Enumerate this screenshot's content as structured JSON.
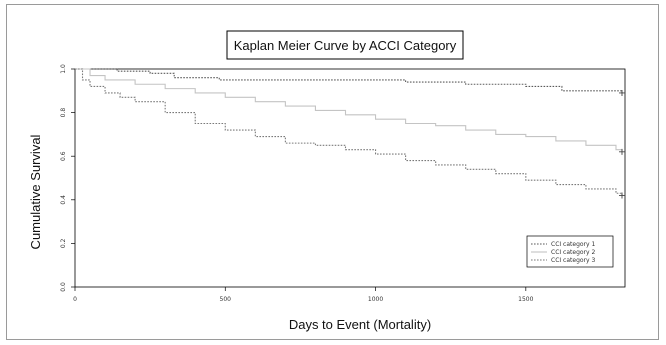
{
  "chart_data": {
    "type": "line",
    "title": "Kaplan Meier Curve by ACCI Category",
    "xlabel": "Days to Event (Mortality)",
    "ylabel": "Cumulative Survival",
    "xlim": [
      0,
      1830
    ],
    "ylim": [
      0,
      1.0
    ],
    "x_ticks": [
      {
        "value": 0,
        "label": "0"
      },
      {
        "value": 500,
        "label": "500"
      },
      {
        "value": 1000,
        "label": "1000"
      },
      {
        "value": 1500,
        "label": "1500"
      }
    ],
    "y_ticks": [
      {
        "value": 0.0,
        "label": "0.0"
      },
      {
        "value": 0.2,
        "label": "0.2"
      },
      {
        "value": 0.4,
        "label": "0.4"
      },
      {
        "value": 0.6,
        "label": "0.6"
      },
      {
        "value": 0.8,
        "label": "0.8"
      },
      {
        "value": 1.0,
        "label": "1.0"
      }
    ],
    "grid": false,
    "legend_position": "bottom-right",
    "series": [
      {
        "name": "CCI category 1",
        "color": "#5a5a5a",
        "dash": "dotted",
        "x": [
          0,
          60,
          140,
          250,
          330,
          480,
          600,
          900,
          1100,
          1200,
          1300,
          1500,
          1580,
          1620,
          1820
        ],
        "y": [
          1.0,
          1.0,
          0.99,
          0.98,
          0.96,
          0.95,
          0.95,
          0.95,
          0.94,
          0.94,
          0.93,
          0.92,
          0.92,
          0.9,
          0.89
        ]
      },
      {
        "name": "CCI category 2",
        "color": "#c4c4c4",
        "dash": "solid",
        "x": [
          0,
          50,
          100,
          200,
          300,
          400,
          500,
          600,
          700,
          800,
          900,
          1000,
          1100,
          1200,
          1300,
          1400,
          1500,
          1600,
          1700,
          1800,
          1820
        ],
        "y": [
          1.0,
          0.97,
          0.95,
          0.93,
          0.91,
          0.89,
          0.87,
          0.85,
          0.83,
          0.81,
          0.79,
          0.77,
          0.75,
          0.74,
          0.72,
          0.7,
          0.69,
          0.67,
          0.65,
          0.63,
          0.62
        ]
      },
      {
        "name": "CCI category 3",
        "color": "#7a7a7a",
        "dash": "dotted",
        "x": [
          0,
          25,
          50,
          100,
          150,
          200,
          300,
          400,
          500,
          600,
          700,
          800,
          900,
          1000,
          1100,
          1200,
          1300,
          1400,
          1500,
          1600,
          1700,
          1800,
          1820
        ],
        "y": [
          1.0,
          0.95,
          0.92,
          0.89,
          0.87,
          0.85,
          0.8,
          0.75,
          0.72,
          0.69,
          0.66,
          0.65,
          0.63,
          0.61,
          0.58,
          0.56,
          0.54,
          0.52,
          0.49,
          0.47,
          0.45,
          0.43,
          0.42
        ]
      }
    ]
  }
}
